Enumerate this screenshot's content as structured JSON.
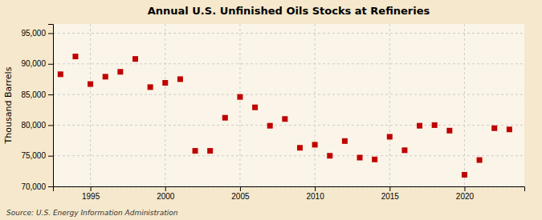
{
  "chart_data": {
    "type": "scatter",
    "title": "Annual U.S. Unfinished Oils Stocks at Refineries",
    "ylabel": "Thousand Barrels",
    "annotations": [
      "Source: U.S. Energy Information Administration"
    ],
    "color": "#c00000",
    "marker": "square",
    "grid": true,
    "xlim": [
      1992.5,
      2024
    ],
    "xticks": [
      1995,
      2000,
      2005,
      2010,
      2015,
      2020
    ],
    "ylim": [
      70000,
      96500
    ],
    "yticks": [
      {
        "value": 70000,
        "label": "70,000"
      },
      {
        "value": 75000,
        "label": "75,000"
      },
      {
        "value": 80000,
        "label": "80,000"
      },
      {
        "value": 85000,
        "label": "85,000"
      },
      {
        "value": 90000,
        "label": "90,000"
      },
      {
        "value": 95000,
        "label": "95,000"
      }
    ],
    "x": [
      1993,
      1994,
      1995,
      1996,
      1997,
      1998,
      1999,
      2000,
      2001,
      2002,
      2003,
      2004,
      2005,
      2006,
      2007,
      2008,
      2009,
      2010,
      2011,
      2012,
      2013,
      2014,
      2015,
      2016,
      2017,
      2018,
      2019,
      2020,
      2021,
      2022,
      2023
    ],
    "values": [
      88300,
      91200,
      86700,
      87900,
      88700,
      90800,
      86200,
      86900,
      87500,
      75800,
      75800,
      81200,
      84600,
      82900,
      79900,
      81000,
      76300,
      76800,
      75000,
      77400,
      74700,
      74400,
      78100,
      75900,
      79900,
      80000,
      79100,
      71900,
      74300,
      79500,
      79300
    ]
  }
}
